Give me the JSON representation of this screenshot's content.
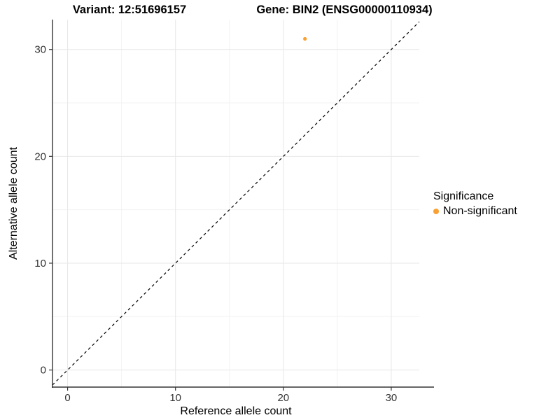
{
  "chart_data": {
    "type": "scatter",
    "title_left": "Variant: 12:51696157",
    "title_right": "Gene: BIN2 (ENSG00000110934)",
    "xlabel": "Reference allele count",
    "ylabel": "Alternative allele count",
    "xticks": [
      0,
      10,
      20,
      30
    ],
    "yticks": [
      0,
      10,
      20,
      30
    ],
    "xminor": [
      5,
      15,
      25
    ],
    "yminor": [
      5,
      15,
      25
    ],
    "xlim": [
      -1.4,
      32.6
    ],
    "ylim": [
      -1.6,
      32.8
    ],
    "grid": true,
    "identity_line": {
      "type": "y=x",
      "style": "dashed",
      "color": "#000000"
    },
    "series": [
      {
        "name": "Non-significant",
        "color": "#FAA032",
        "points": [
          {
            "x": 22,
            "y": 31
          }
        ]
      }
    ],
    "legend": {
      "title": "Significance",
      "position": "right",
      "items": [
        {
          "label": "Non-significant",
          "color": "#FAA032"
        }
      ]
    },
    "colors": {
      "background": "#FFFFFF",
      "grid_major": "#E7E7E7",
      "grid_minor": "#F2F2F2",
      "axis_line": "#333333",
      "tick_mark": "#333333",
      "tick_label": "#333333",
      "axis_title": "#000000"
    }
  }
}
